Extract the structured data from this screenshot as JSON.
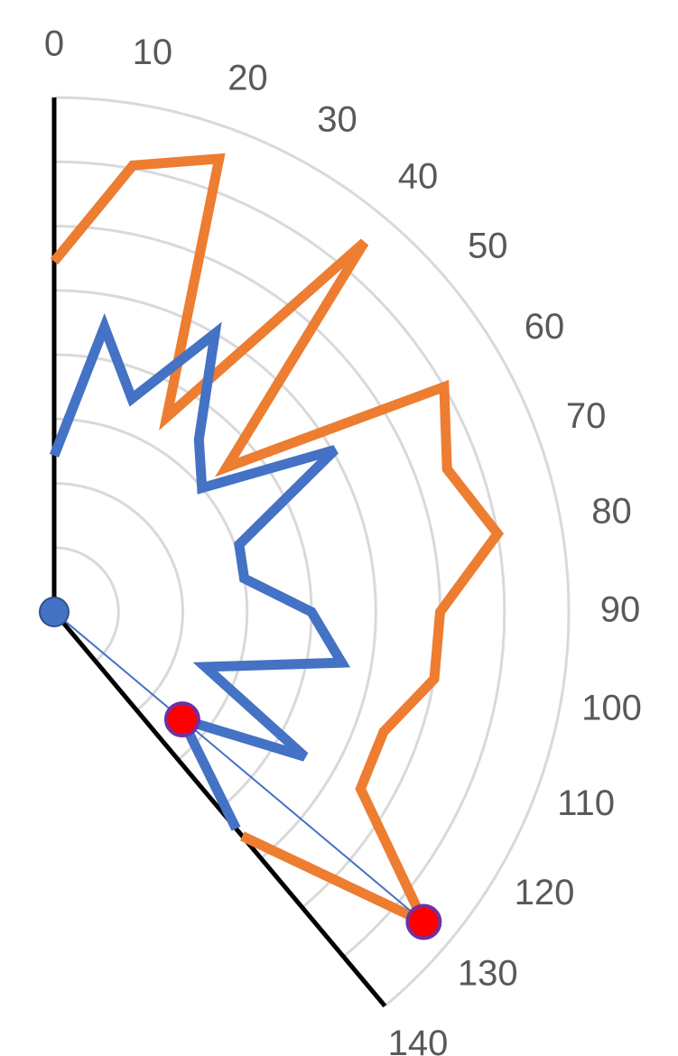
{
  "chart_data": {
    "type": "polar",
    "theta": [
      0,
      10,
      20,
      30,
      40,
      50,
      60,
      70,
      80,
      90,
      100,
      110,
      120,
      130,
      140
    ],
    "thetaticks": [
      0,
      10,
      20,
      30,
      40,
      50,
      60,
      70,
      80,
      90,
      100,
      110,
      120,
      130,
      140
    ],
    "rlim": [
      0,
      8
    ],
    "rticks": [
      1,
      2,
      3,
      4,
      5,
      6,
      7,
      8
    ],
    "grid": true,
    "highlight_index": 13,
    "highlight_color": "#ff0000",
    "series": [
      {
        "color": "#ed7d31",
        "values": [
          5.45,
          7.05,
          7.5,
          3.5,
          7.5,
          3.5,
          7,
          6.5,
          7,
          6,
          6,
          5.45,
          5.5,
          7.5,
          4.55
        ]
      },
      {
        "color": "#4472c4",
        "values": [
          2.43,
          4.5,
          3.53,
          5,
          3.5,
          3,
          5.04,
          3.06,
          3,
          4,
          4.54,
          2.5,
          4.5,
          2.6,
          4.4
        ]
      }
    ]
  }
}
